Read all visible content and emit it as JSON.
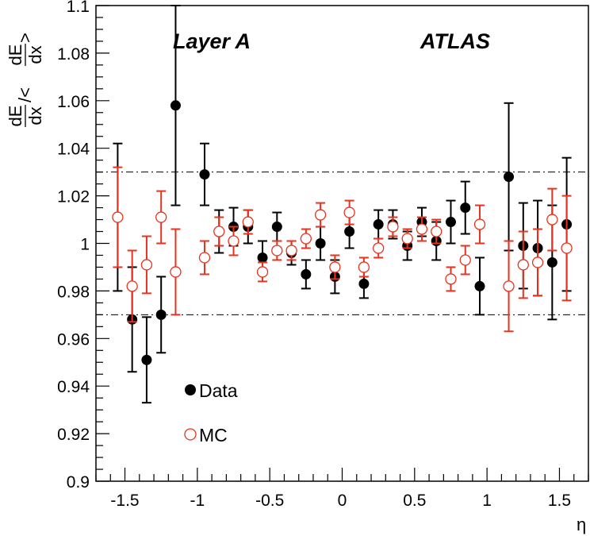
{
  "chart_data": {
    "type": "scatter",
    "title": "",
    "xlabel": "η",
    "ylabel": {
      "numerator": "dE",
      "denominator": "dx",
      "sep": " /< ",
      "close": " >"
    },
    "xlim": [
      -1.7,
      1.7
    ],
    "ylim": [
      0.9,
      1.1
    ],
    "x_ticks": [
      -1.5,
      -1,
      -0.5,
      0,
      0.5,
      1,
      1.5
    ],
    "x_tick_labels": [
      "-1.5",
      "-1",
      "-0.5",
      "0",
      "0.5",
      "1",
      "1.5"
    ],
    "y_ticks": [
      0.9,
      0.92,
      0.94,
      0.96,
      0.98,
      1.0,
      1.02,
      1.04,
      1.06,
      1.08,
      1.1
    ],
    "y_tick_labels": [
      "0.9",
      "0.92",
      "0.94",
      "0.96",
      "0.98",
      "1",
      "1.02",
      "1.04",
      "1.06",
      "1.08",
      "1.1"
    ],
    "reference_lines": [
      0.97,
      1.03
    ],
    "annotations": {
      "layer": "Layer A",
      "experiment": "ATLAS"
    },
    "legend": {
      "data": "Data",
      "mc": "MC"
    },
    "series": [
      {
        "name": "Data",
        "color": "#000000",
        "marker": "filled-circle",
        "points": [
          {
            "x": -1.55,
            "y": 1.011,
            "err": 0.031
          },
          {
            "x": -1.45,
            "y": 0.968,
            "err": 0.022
          },
          {
            "x": -1.35,
            "y": 0.951,
            "err": 0.018
          },
          {
            "x": -1.25,
            "y": 0.97,
            "err": 0.016
          },
          {
            "x": -1.15,
            "y": 1.058,
            "err": 0.042
          },
          {
            "x": -0.95,
            "y": 1.029,
            "err": 0.013
          },
          {
            "x": -0.85,
            "y": 1.005,
            "err": 0.009
          },
          {
            "x": -0.75,
            "y": 1.007,
            "err": 0.008
          },
          {
            "x": -0.65,
            "y": 1.007,
            "err": 0.007
          },
          {
            "x": -0.55,
            "y": 0.994,
            "err": 0.007
          },
          {
            "x": -0.45,
            "y": 1.007,
            "err": 0.006
          },
          {
            "x": -0.35,
            "y": 0.996,
            "err": 0.005
          },
          {
            "x": -0.25,
            "y": 0.987,
            "err": 0.006
          },
          {
            "x": -0.15,
            "y": 1.0,
            "err": 0.007
          },
          {
            "x": -0.05,
            "y": 0.986,
            "err": 0.007
          },
          {
            "x": 0.05,
            "y": 1.005,
            "err": 0.007
          },
          {
            "x": 0.15,
            "y": 0.983,
            "err": 0.006
          },
          {
            "x": 0.25,
            "y": 1.008,
            "err": 0.006
          },
          {
            "x": 0.35,
            "y": 1.008,
            "err": 0.006
          },
          {
            "x": 0.45,
            "y": 0.999,
            "err": 0.006
          },
          {
            "x": 0.55,
            "y": 1.009,
            "err": 0.006
          },
          {
            "x": 0.65,
            "y": 1.001,
            "err": 0.008
          },
          {
            "x": 0.75,
            "y": 1.009,
            "err": 0.009
          },
          {
            "x": 0.85,
            "y": 1.015,
            "err": 0.011
          },
          {
            "x": 0.95,
            "y": 0.982,
            "err": 0.012
          },
          {
            "x": 1.15,
            "y": 1.028,
            "err": 0.031
          },
          {
            "x": 1.25,
            "y": 0.999,
            "err": 0.018
          },
          {
            "x": 1.35,
            "y": 0.998,
            "err": 0.02
          },
          {
            "x": 1.45,
            "y": 0.992,
            "err": 0.024
          },
          {
            "x": 1.55,
            "y": 1.008,
            "err": 0.028
          }
        ]
      },
      {
        "name": "MC",
        "color": "#e8321e",
        "marker": "open-circle",
        "points": [
          {
            "x": -1.55,
            "y": 1.011,
            "err": 0.021
          },
          {
            "x": -1.45,
            "y": 0.982,
            "err": 0.015
          },
          {
            "x": -1.35,
            "y": 0.991,
            "err": 0.012
          },
          {
            "x": -1.25,
            "y": 1.011,
            "err": 0.011
          },
          {
            "x": -1.15,
            "y": 0.988,
            "err": 0.018
          },
          {
            "x": -0.95,
            "y": 0.994,
            "err": 0.007
          },
          {
            "x": -0.85,
            "y": 1.005,
            "err": 0.006
          },
          {
            "x": -0.75,
            "y": 1.001,
            "err": 0.006
          },
          {
            "x": -0.65,
            "y": 1.009,
            "err": 0.005
          },
          {
            "x": -0.55,
            "y": 0.988,
            "err": 0.004
          },
          {
            "x": -0.45,
            "y": 0.997,
            "err": 0.004
          },
          {
            "x": -0.35,
            "y": 0.997,
            "err": 0.004
          },
          {
            "x": -0.25,
            "y": 1.002,
            "err": 0.004
          },
          {
            "x": -0.15,
            "y": 1.012,
            "err": 0.005
          },
          {
            "x": -0.05,
            "y": 0.99,
            "err": 0.005
          },
          {
            "x": 0.05,
            "y": 1.013,
            "err": 0.005
          },
          {
            "x": 0.15,
            "y": 0.99,
            "err": 0.004
          },
          {
            "x": 0.25,
            "y": 0.998,
            "err": 0.004
          },
          {
            "x": 0.35,
            "y": 1.007,
            "err": 0.004
          },
          {
            "x": 0.45,
            "y": 1.002,
            "err": 0.004
          },
          {
            "x": 0.55,
            "y": 1.006,
            "err": 0.005
          },
          {
            "x": 0.65,
            "y": 1.005,
            "err": 0.005
          },
          {
            "x": 0.75,
            "y": 0.985,
            "err": 0.005
          },
          {
            "x": 0.85,
            "y": 0.993,
            "err": 0.006
          },
          {
            "x": 0.95,
            "y": 1.008,
            "err": 0.008
          },
          {
            "x": 1.15,
            "y": 0.982,
            "err": 0.019
          },
          {
            "x": 1.25,
            "y": 0.991,
            "err": 0.014
          },
          {
            "x": 1.35,
            "y": 0.992,
            "err": 0.014
          },
          {
            "x": 1.45,
            "y": 1.01,
            "err": 0.013
          },
          {
            "x": 1.55,
            "y": 0.998,
            "err": 0.022
          }
        ]
      }
    ]
  }
}
